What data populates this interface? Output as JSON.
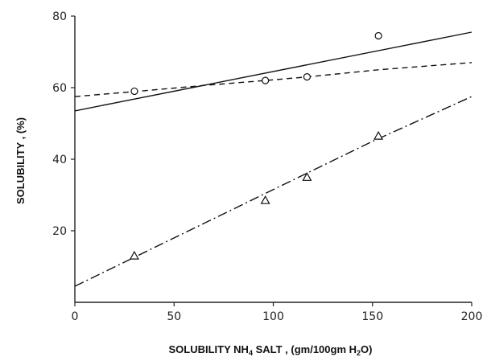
{
  "chart_data": {
    "type": "scatter",
    "xlabel": "SOLUBILITY NH4 SALT , (gm/100gm H2O)",
    "ylabel": "SOLUBILITY , (%)",
    "xlim": [
      0,
      200
    ],
    "ylim": [
      0,
      80
    ],
    "x_ticks": [
      0,
      50,
      100,
      150,
      200
    ],
    "y_ticks": [
      20,
      40,
      60,
      80
    ],
    "x_tick_labels": [
      "0",
      "50",
      "100",
      "150",
      "200"
    ],
    "y_tick_labels": [
      "20",
      "40",
      "60",
      "80"
    ],
    "grid": false,
    "legend": "none",
    "series": [
      {
        "marker": "circle",
        "points": [
          [
            30,
            59
          ],
          [
            96,
            62
          ],
          [
            117,
            63
          ],
          [
            153,
            74.5
          ]
        ]
      },
      {
        "marker": "triangle",
        "points": [
          [
            30,
            13
          ],
          [
            96,
            28.5
          ],
          [
            117,
            35
          ],
          [
            153,
            46.5
          ]
        ]
      }
    ],
    "lines": [
      {
        "style": "solid",
        "points": [
          [
            0,
            53.5
          ],
          [
            200,
            75.5
          ]
        ]
      },
      {
        "style": "dashed",
        "points": [
          [
            0,
            57.5
          ],
          [
            30,
            58.9
          ],
          [
            65,
            60.6
          ],
          [
            96,
            62
          ],
          [
            117,
            63
          ],
          [
            153,
            65
          ],
          [
            200,
            67
          ]
        ]
      },
      {
        "style": "dash-dot",
        "points": [
          [
            0,
            4.5
          ],
          [
            50,
            18
          ],
          [
            100,
            31.5
          ],
          [
            150,
            45
          ],
          [
            200,
            57.5
          ]
        ]
      }
    ]
  }
}
